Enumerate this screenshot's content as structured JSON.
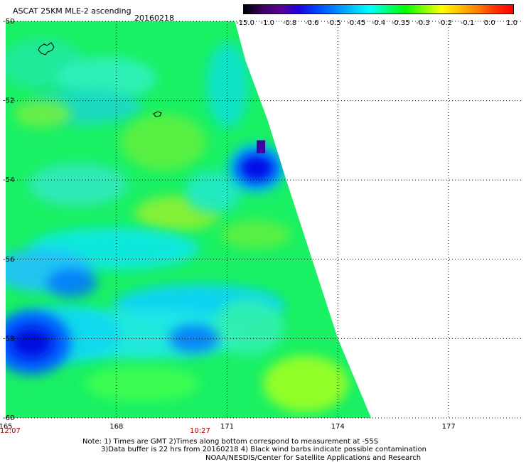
{
  "header": {
    "title": "ASCAT 25KM MLE-2 ascending",
    "date": "20160218"
  },
  "colorbar": {
    "colors": [
      "#000000",
      "#3a0060",
      "#5b0090",
      "#2000d8",
      "#0040ff",
      "#0080ff",
      "#00c0ff",
      "#00ffff",
      "#00ff80",
      "#00ff00",
      "#80ff00",
      "#ffff00",
      "#ffc000",
      "#ff8000",
      "#ff3000",
      "#ff0000"
    ],
    "labels": [
      "-15.0",
      "-1.0",
      "-0.8",
      "-0.6",
      "-0.5",
      "-0.45",
      "-0.4",
      "-0.35",
      "-0.3",
      "-0.2",
      "-0.1",
      "0.0",
      "1.0"
    ]
  },
  "map": {
    "lon_range": [
      165,
      179
    ],
    "lat_range": [
      -50,
      -60
    ],
    "x_ticks": [
      "165",
      "168",
      "171",
      "174",
      "177"
    ],
    "y_ticks": [
      "-50",
      "-52",
      "-54",
      "-56",
      "-58",
      "-60"
    ],
    "time_labels": [
      "12:07",
      "10:27"
    ],
    "swath_edge": [
      [
        171.5,
        -51
      ],
      [
        172.1,
        -52.5
      ],
      [
        172.6,
        -54
      ],
      [
        173.3,
        -56
      ],
      [
        174.0,
        -58
      ],
      [
        174.9,
        -60
      ]
    ],
    "anomalies": [
      {
        "lon": 171.8,
        "lat": -53.7,
        "level": "blue"
      },
      {
        "lon": 165.7,
        "lat": -58.1,
        "level": "blue"
      },
      {
        "lon": 166.8,
        "lat": -56.6,
        "level": "blue"
      },
      {
        "lon": 170.1,
        "lat": -58.0,
        "level": "blue"
      }
    ],
    "grid": true
  },
  "footer": {
    "note1": "Note: 1) Times are GMT 2)Times along bottom correspond to measurement at -55S",
    "note2": "3)Data buffer is 22 hrs from 20160218 4) Black wind barbs indicate possible contamination",
    "credit": "NOAA/NESDIS/Center for Satellite Applications and Research"
  }
}
